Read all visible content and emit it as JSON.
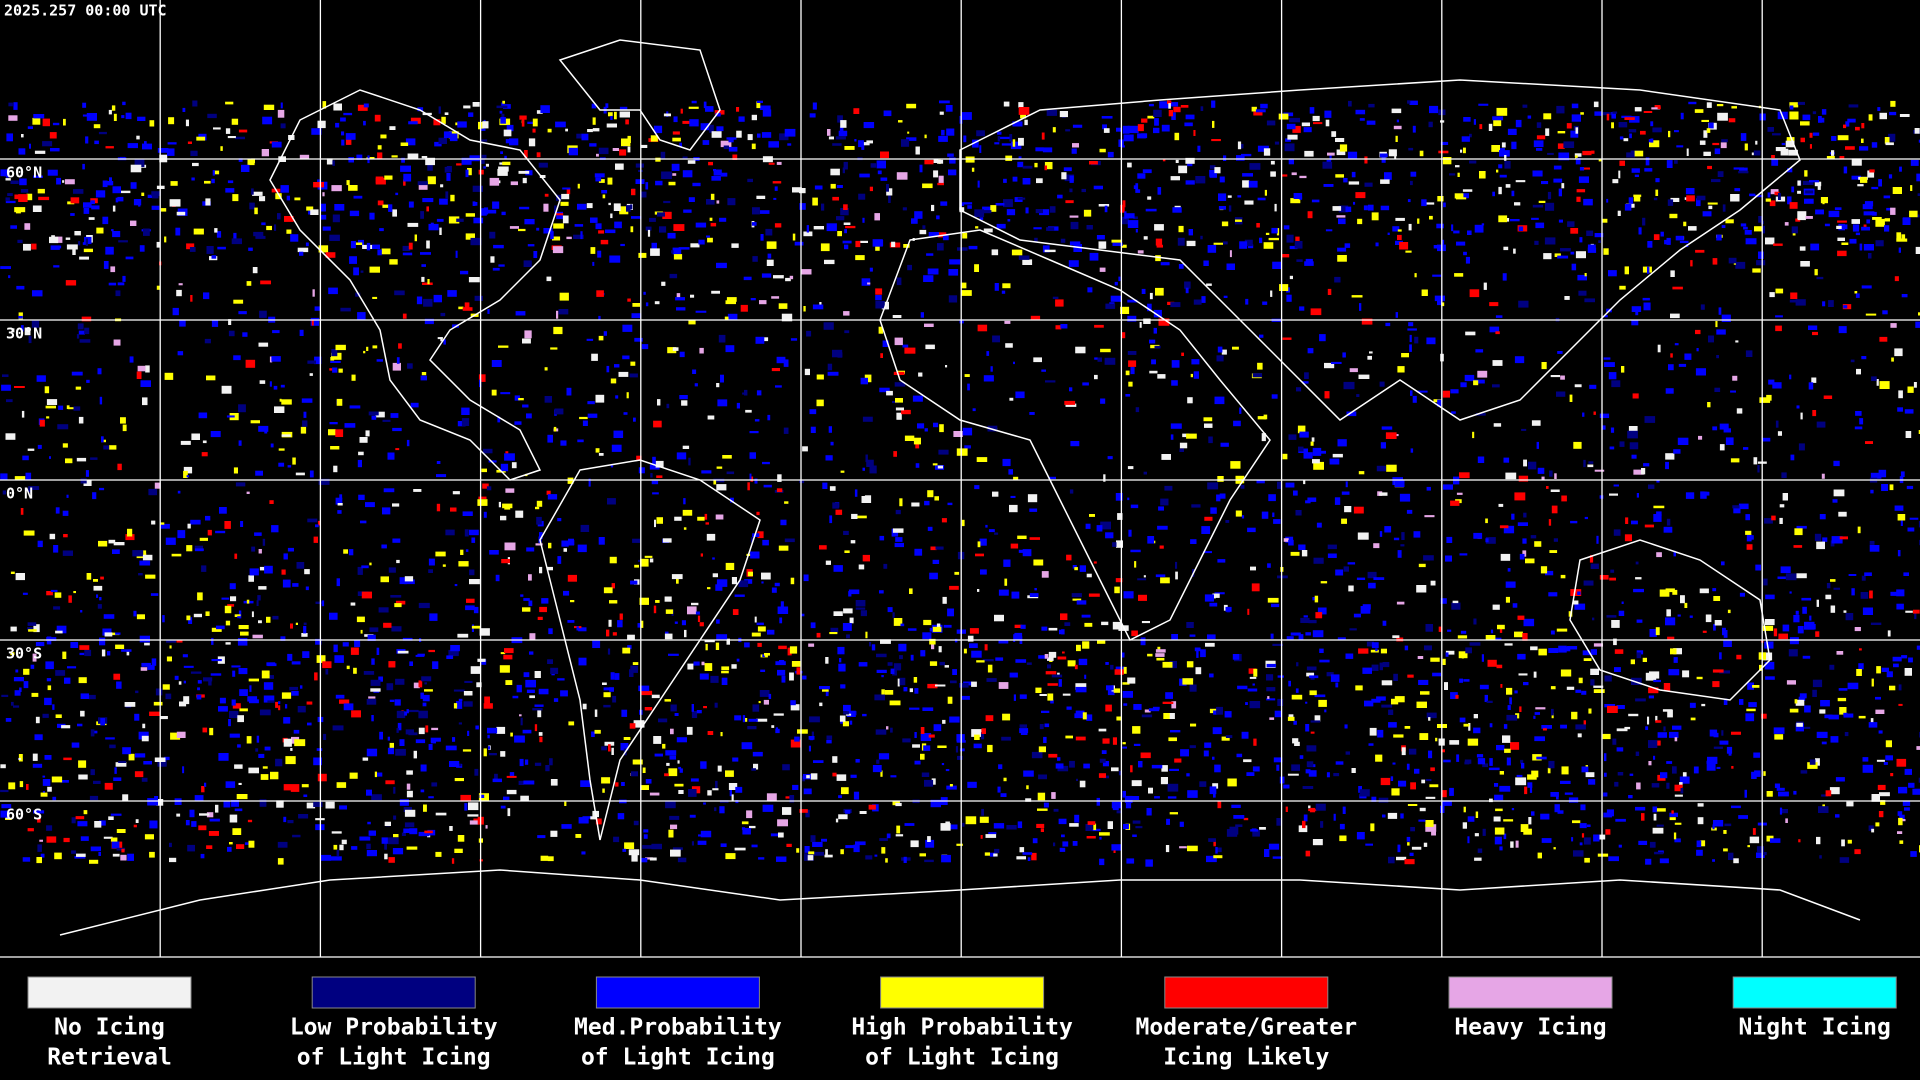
{
  "header": {
    "timestamp": "2025.257 00:00 UTC"
  },
  "map": {
    "latitude_labels": [
      "60°N",
      "30°N",
      "0°N",
      "30°S",
      "60°S"
    ]
  },
  "legend": {
    "items": [
      {
        "label_lines": [
          "No Icing",
          "Retrieval"
        ],
        "color": "#f2f2f2"
      },
      {
        "label_lines": [
          "Low Probability",
          "of Light Icing"
        ],
        "color": "#000080"
      },
      {
        "label_lines": [
          "Med.Probability",
          "of Light Icing"
        ],
        "color": "#0000ff"
      },
      {
        "label_lines": [
          "High Probability",
          "of Light Icing"
        ],
        "color": "#ffff00"
      },
      {
        "label_lines": [
          "Moderate/Greater",
          "Icing Likely"
        ],
        "color": "#ff0000"
      },
      {
        "label_lines": [
          "Heavy Icing"
        ],
        "color": "#e6a6e6"
      },
      {
        "label_lines": [
          "Night Icing"
        ],
        "color": "#00ffff"
      }
    ]
  }
}
